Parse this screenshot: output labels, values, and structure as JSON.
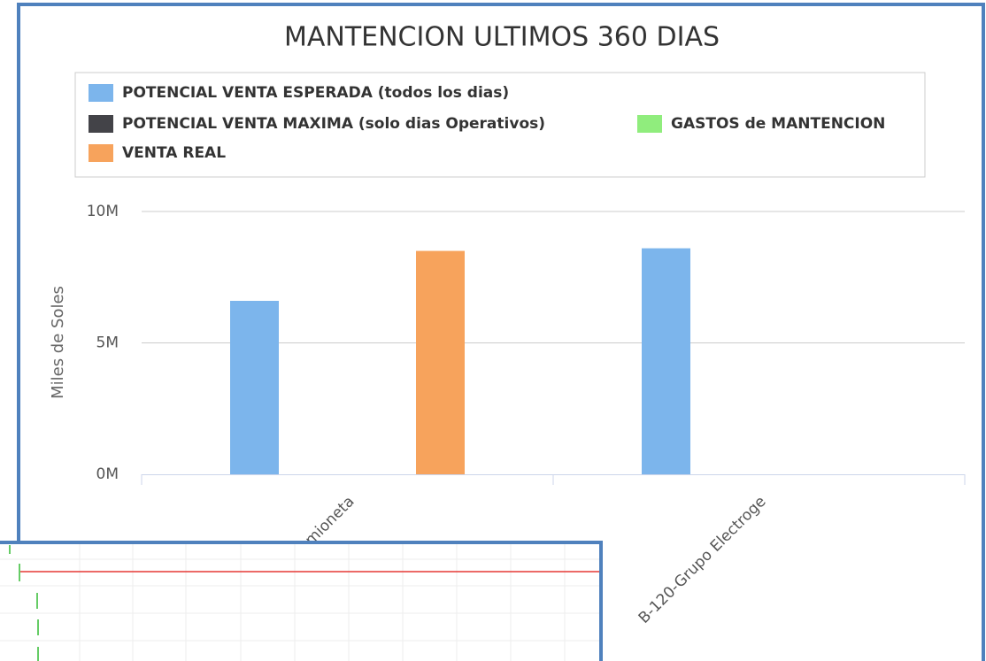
{
  "chart_data": {
    "type": "bar",
    "title": "MANTENCION ULTIMOS 360 DIAS",
    "y_label": "Miles de Soles",
    "categories": [
      "Camioneta",
      "B-120-Grupo Electroge"
    ],
    "series": [
      {
        "name": "POTENCIAL VENTA ESPERADA (todos los dias)",
        "color": "#7cb5ec",
        "values": [
          6600000,
          8600000
        ]
      },
      {
        "name": "POTENCIAL VENTA MAXIMA (solo dias Operativos)",
        "color": "#434348",
        "values": [
          0,
          0
        ]
      },
      {
        "name": "GASTOS de MANTENCION",
        "color": "#90ed7d",
        "values": [
          0,
          0
        ]
      },
      {
        "name": "VENTA REAL",
        "color": "#f7a35c",
        "values": [
          8500000,
          0
        ]
      }
    ],
    "ylim": [
      0,
      10000000
    ],
    "yticks": [
      {
        "value": 0,
        "label": "0M"
      },
      {
        "value": 5000000,
        "label": "5M"
      },
      {
        "value": 10000000,
        "label": "10M"
      }
    ],
    "grid": true
  }
}
